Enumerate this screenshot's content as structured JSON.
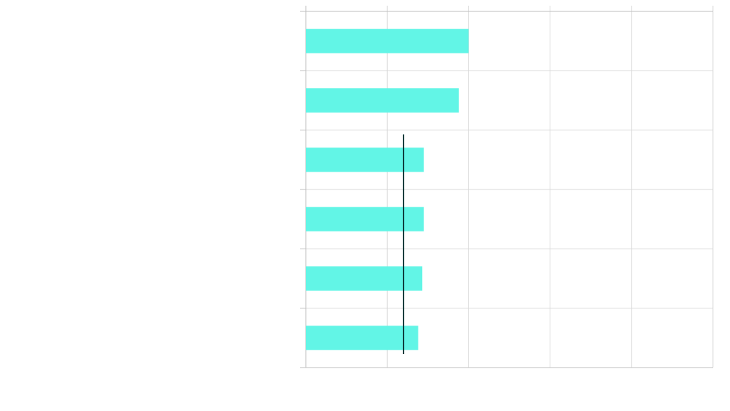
{
  "chart_data": {
    "type": "bar",
    "orientation": "horizontal",
    "title": "",
    "xlabel": "",
    "ylabel": "",
    "categories": [
      "",
      "",
      "",
      "",
      "",
      ""
    ],
    "values": [
      2.0,
      1.88,
      1.45,
      1.45,
      1.43,
      1.38
    ],
    "xlim": [
      0,
      5
    ],
    "grid": true,
    "bar_color": "#62F5E6",
    "reference_line": {
      "value": 1.2,
      "color": "#0E3B3B",
      "from_category": 2
    }
  },
  "colors": {
    "grid": "#d9d9d9",
    "axis": "#bfbfbf",
    "background": "#ffffff"
  }
}
